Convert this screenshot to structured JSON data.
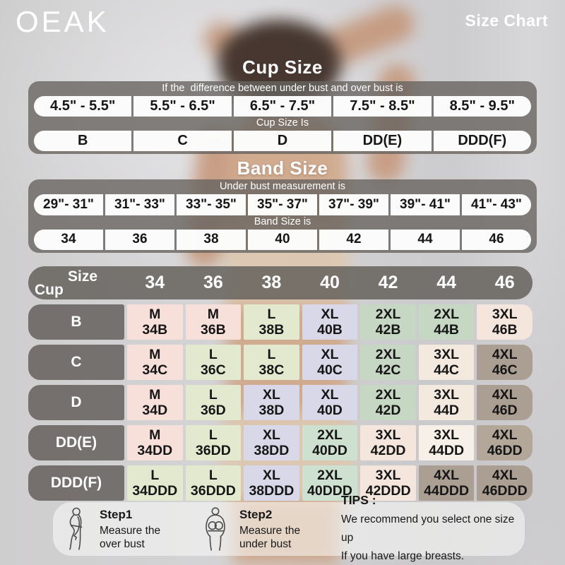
{
  "brand": "OEAK",
  "page_title": "Size Chart",
  "cup_section": {
    "title": "Cup Size",
    "instruction": "If the  difference between under bust and over bust is",
    "ranges": [
      "4.5\" - 5.5\"",
      "5.5\" - 6.5\"",
      "6.5\" - 7.5\"",
      "7.5\" - 8.5\"",
      "8.5\" - 9.5\""
    ],
    "result_label": "Cup Size Is",
    "values": [
      "B",
      "C",
      "D",
      "DD(E)",
      "DDD(F)"
    ]
  },
  "band_section": {
    "title": "Band Size",
    "instruction": "Under bust measurement is",
    "ranges": [
      "29\"- 31\"",
      "31\"- 33\"",
      "33\"- 35\"",
      "35\"- 37\"",
      "37\"- 39\"",
      "39\"- 41\"",
      "41\"- 43\""
    ],
    "result_label": "Band Size is",
    "values": [
      "34",
      "36",
      "38",
      "40",
      "42",
      "44",
      "46"
    ]
  },
  "matrix": {
    "corner_top": "Size",
    "corner_bottom": "Cup",
    "columns": [
      "34",
      "36",
      "38",
      "40",
      "42",
      "44",
      "46"
    ],
    "rows": [
      {
        "cup": "B",
        "cells": [
          {
            "size": "M",
            "code": "34B",
            "color": "pink"
          },
          {
            "size": "M",
            "code": "36B",
            "color": "pink"
          },
          {
            "size": "L",
            "code": "38B",
            "color": "green"
          },
          {
            "size": "XL",
            "code": "40B",
            "color": "lavender"
          },
          {
            "size": "2XL",
            "code": "42B",
            "color": "sage"
          },
          {
            "size": "2XL",
            "code": "44B",
            "color": "sage"
          },
          {
            "size": "3XL",
            "code": "46B",
            "color": "creamPink"
          }
        ]
      },
      {
        "cup": "C",
        "cells": [
          {
            "size": "M",
            "code": "34C",
            "color": "pink"
          },
          {
            "size": "L",
            "code": "36C",
            "color": "green"
          },
          {
            "size": "L",
            "code": "38C",
            "color": "green"
          },
          {
            "size": "XL",
            "code": "40C",
            "color": "lavender"
          },
          {
            "size": "2XL",
            "code": "42C",
            "color": "sage"
          },
          {
            "size": "3XL",
            "code": "44C",
            "color": "cream"
          },
          {
            "size": "4XL",
            "code": "46C",
            "color": "taupe"
          }
        ]
      },
      {
        "cup": "D",
        "cells": [
          {
            "size": "M",
            "code": "34D",
            "color": "pink"
          },
          {
            "size": "L",
            "code": "36D",
            "color": "green"
          },
          {
            "size": "XL",
            "code": "38D",
            "color": "lavender"
          },
          {
            "size": "XL",
            "code": "40D",
            "color": "lavender"
          },
          {
            "size": "2XL",
            "code": "42D",
            "color": "sage"
          },
          {
            "size": "3XL",
            "code": "44D",
            "color": "cream"
          },
          {
            "size": "4XL",
            "code": "46D",
            "color": "taupe"
          }
        ]
      },
      {
        "cup": "DD(E)",
        "cells": [
          {
            "size": "M",
            "code": "34DD",
            "color": "pink"
          },
          {
            "size": "L",
            "code": "36DD",
            "color": "green"
          },
          {
            "size": "XL",
            "code": "38DD",
            "color": "lavender"
          },
          {
            "size": "2XL",
            "code": "40DD",
            "color": "mint"
          },
          {
            "size": "3XL",
            "code": "42DD",
            "color": "creamPink"
          },
          {
            "size": "3XL",
            "code": "44DD",
            "color": "lightCream"
          },
          {
            "size": "4XL",
            "code": "46DD",
            "color": "taupeLight"
          }
        ]
      },
      {
        "cup": "DDD(F)",
        "cells": [
          {
            "size": "L",
            "code": "34DDD",
            "color": "green"
          },
          {
            "size": "L",
            "code": "36DDD",
            "color": "green"
          },
          {
            "size": "XL",
            "code": "38DDD",
            "color": "lavender"
          },
          {
            "size": "2XL",
            "code": "40DDD",
            "color": "mint"
          },
          {
            "size": "3XL",
            "code": "42DDD",
            "color": "creamPink"
          },
          {
            "size": "4XL",
            "code": "44DDD",
            "color": "taupe"
          },
          {
            "size": "4XL",
            "code": "46DDD",
            "color": "taupe"
          }
        ]
      }
    ]
  },
  "cell_colors": {
    "pink": "#f7e0da",
    "green": "#e2e9cf",
    "lavender": "#d9d8e9",
    "sage": "#c6d8c3",
    "mint": "#cee1d1",
    "cream": "#f3e9df",
    "creamPink": "#f4e5dd",
    "lightCream": "#f7f0e8",
    "taupe": "#ab9e92",
    "taupeLight": "#b3a79a"
  },
  "theme": {
    "panel_gray": "#68645f",
    "text_light": "#ffffff",
    "text_dark": "#161616"
  },
  "footer": {
    "step1": {
      "title": "Step1",
      "lines": [
        "Measure the",
        "over bust"
      ]
    },
    "step2": {
      "title": "Step2",
      "lines": [
        "Measure the",
        "under bust"
      ]
    },
    "tips": {
      "title": "TIPS :",
      "lines": [
        "We recommend you select one size up",
        "If you have large breasts."
      ]
    }
  }
}
